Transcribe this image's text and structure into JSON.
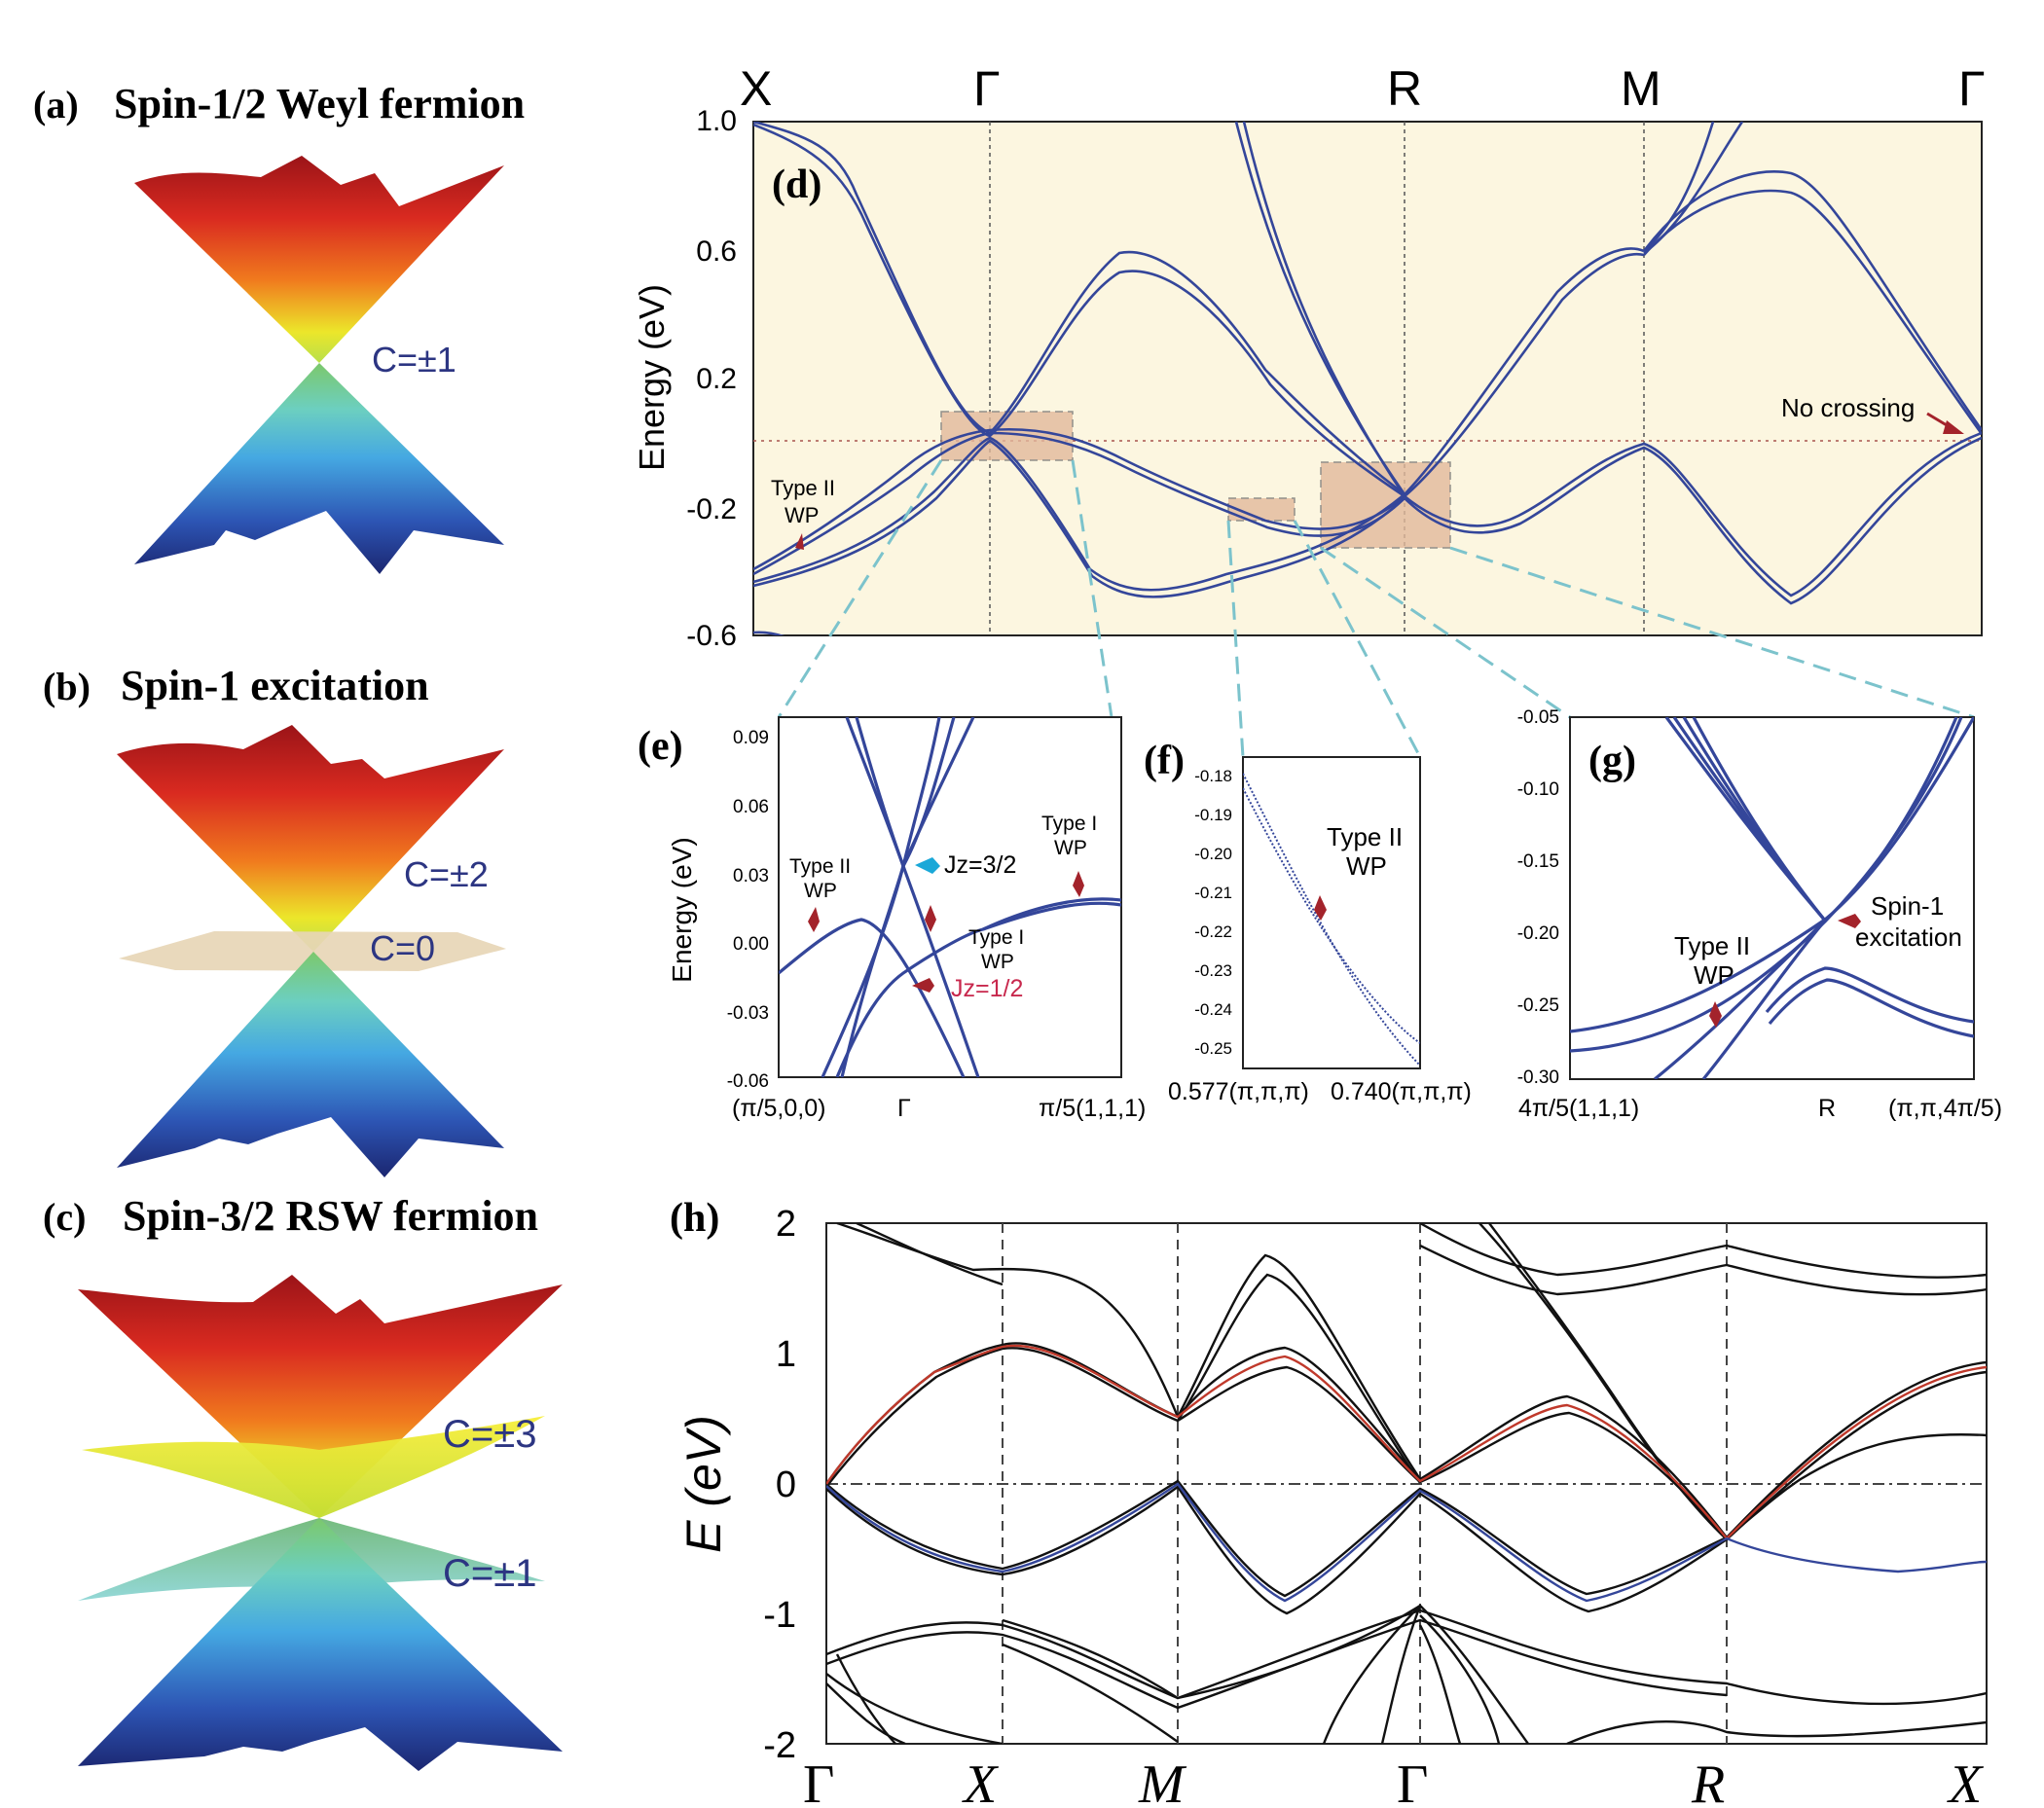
{
  "panels": {
    "a": {
      "tag": "(a)",
      "title": "Spin-1/2 Weyl fermion",
      "chern": [
        "C=±1"
      ]
    },
    "b": {
      "tag": "(b)",
      "title": "Spin-1 excitation",
      "chern": [
        "C=±2",
        "C=0"
      ]
    },
    "c": {
      "tag": "(c)",
      "title": "Spin-3/2 RSW fermion",
      "chern": [
        "C=±3",
        "C=±1"
      ]
    },
    "d": {
      "tag": "(d)",
      "kpoints": [
        "X",
        "Γ",
        "R",
        "M",
        "Γ"
      ],
      "ylabel": "Energy (eV)",
      "yticks": [
        "1.0",
        "0.6",
        "0.2",
        "-0.2",
        "-0.6"
      ],
      "ann_type2": [
        "Type II",
        "WP"
      ],
      "ann_nocross": "No crossing"
    },
    "e": {
      "tag": "(e)",
      "ylabel": "Energy (eV)",
      "yticks": [
        "0.09",
        "0.06",
        "0.03",
        "0.00",
        "-0.03",
        "-0.06"
      ],
      "xticks": [
        "(π/5,0,0)",
        "Γ",
        "π/5(1,1,1)"
      ],
      "ann_type2": [
        "Type II",
        "WP"
      ],
      "ann_type1a": [
        "Type I",
        "WP"
      ],
      "ann_type1b": [
        "Type I",
        "WP"
      ],
      "jz32": "Jz=3/2",
      "jz12": "Jz=1/2"
    },
    "f": {
      "tag": "(f)",
      "yticks": [
        "-0.18",
        "-0.19",
        "-0.20",
        "-0.21",
        "-0.22",
        "-0.23",
        "-0.24",
        "-0.25"
      ],
      "xticks": [
        "0.577(π,π,π)",
        "0.740(π,π,π)"
      ],
      "ann_type2": [
        "Type II",
        "WP"
      ]
    },
    "g": {
      "tag": "(g)",
      "yticks": [
        "-0.05",
        "-0.10",
        "-0.15",
        "-0.20",
        "-0.25",
        "-0.30"
      ],
      "xticks": [
        "4π/5(1,1,1)",
        "R",
        "(π,π,4π/5)"
      ],
      "ann_type2": [
        "Type II",
        "WP"
      ],
      "ann_spin1": [
        "Spin-1",
        "excitation"
      ]
    },
    "h": {
      "tag": "(h)",
      "ylabel": "E (eV)",
      "yticks": [
        "2",
        "1",
        "0",
        "-1",
        "-2"
      ],
      "kpoints": [
        "Γ",
        "X",
        "M",
        "Γ",
        "R",
        "X"
      ]
    }
  },
  "colors": {
    "band_blue": "#34469a",
    "band_black": "#111111",
    "band_red": "#c0392b",
    "panel_bg": "#fcf6e0",
    "box_fill": "#e3b99c",
    "dash_teal": "#7cc3cc",
    "arrow_red": "#a3232b",
    "arrow_cyan": "#1aa8d8",
    "chern_text": "#2c3582"
  }
}
